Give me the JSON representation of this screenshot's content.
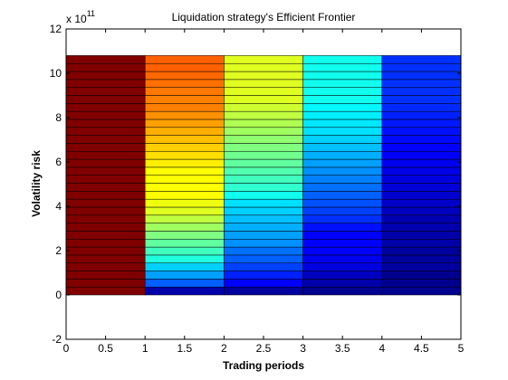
{
  "chart_data": {
    "type": "heatmap",
    "title": "Liquidation strategy's Efficient Frontier",
    "xlabel": "Trading periods",
    "ylabel": "Volatility risk",
    "y_exponent_label": "x 10",
    "y_exponent_power": "11",
    "xlim": [
      0,
      5
    ],
    "ylim": [
      -2,
      12
    ],
    "y_scale_multiplier": 100000000000,
    "x_ticks": [
      "0",
      "0.5",
      "1",
      "1.5",
      "2",
      "2.5",
      "3",
      "3.5",
      "4",
      "4.5",
      "5"
    ],
    "y_ticks": [
      "-2",
      "0",
      "2",
      "4",
      "6",
      "8",
      "10",
      "12"
    ],
    "x_tick_values": [
      0,
      0.5,
      1,
      1.5,
      2,
      2.5,
      3,
      3.5,
      4,
      4.5,
      5
    ],
    "y_tick_values": [
      -2,
      0,
      2,
      4,
      6,
      8,
      10,
      12
    ],
    "x_edges": [
      0,
      1,
      2,
      3,
      4,
      5
    ],
    "y_max": 10.8,
    "band_count": 30,
    "grid": false,
    "colormap": "jet",
    "series": [
      {
        "x_range": [
          0,
          1
        ],
        "colors": [
          "#800000",
          "#800000",
          "#800000",
          "#800000",
          "#800000",
          "#800000",
          "#800000",
          "#800000",
          "#800000",
          "#800000",
          "#800000",
          "#800000",
          "#800000",
          "#800000",
          "#800000",
          "#800000",
          "#800000",
          "#800000",
          "#800000",
          "#800000",
          "#800000",
          "#800000",
          "#800000",
          "#800000",
          "#800000",
          "#800000",
          "#800000",
          "#800000",
          "#800000",
          "#800000"
        ]
      },
      {
        "x_range": [
          1,
          2
        ],
        "colors": [
          "#0000aa",
          "#0060ff",
          "#00a0ff",
          "#00d0ff",
          "#20ffdf",
          "#40ffbf",
          "#60ff9f",
          "#80ff80",
          "#9fff60",
          "#bfff40",
          "#dfff20",
          "#f0ff10",
          "#ffff00",
          "#ffff00",
          "#ffff00",
          "#ffff00",
          "#ffef00",
          "#ffdf00",
          "#ffcf00",
          "#ffbf00",
          "#ffaf00",
          "#ffa000",
          "#ff9000",
          "#ff8000",
          "#ff8000",
          "#ff7800",
          "#ff7000",
          "#ff6800",
          "#ff6000",
          "#ff6000"
        ]
      },
      {
        "x_range": [
          2,
          3
        ],
        "colors": [
          "#00009f",
          "#0000ff",
          "#0020ff",
          "#0040ff",
          "#0060ff",
          "#0070ff",
          "#0090ff",
          "#00a0ff",
          "#00b0ff",
          "#00c0ff",
          "#00d0ff",
          "#00e0ff",
          "#10ffef",
          "#30ffcf",
          "#40ffbf",
          "#50ffaf",
          "#60ff9f",
          "#70ff8f",
          "#80ff80",
          "#90ff70",
          "#a0ff60",
          "#afff50",
          "#bfff40",
          "#cfff30",
          "#dfff20",
          "#dfff20",
          "#dfff20",
          "#dfff20",
          "#dfff20",
          "#dfff20"
        ]
      },
      {
        "x_range": [
          3,
          4
        ],
        "colors": [
          "#00008f",
          "#0000aa",
          "#0000c0",
          "#0000df",
          "#0000ef",
          "#0000ff",
          "#0000ff",
          "#0000ff",
          "#0010ff",
          "#0030ff",
          "#0040ff",
          "#0050ff",
          "#0060ff",
          "#0070ff",
          "#0080ff",
          "#0090ff",
          "#00a0ff",
          "#00b0ff",
          "#00c0ff",
          "#00d0ff",
          "#00e0ff",
          "#00e8ff",
          "#00f0ff",
          "#00f8ff",
          "#10ffef",
          "#10ffef",
          "#10ffef",
          "#10ffef",
          "#10ffef",
          "#10ffef"
        ]
      },
      {
        "x_range": [
          4,
          5
        ],
        "colors": [
          "#00008f",
          "#00008f",
          "#00008f",
          "#00009f",
          "#00009f",
          "#00009f",
          "#0000aa",
          "#0000aa",
          "#0000af",
          "#0000b0",
          "#0000bf",
          "#0000c8",
          "#0000cf",
          "#0000d8",
          "#0000df",
          "#0000e8",
          "#0000ef",
          "#0000f8",
          "#0000ff",
          "#0008ff",
          "#0010ff",
          "#0018ff",
          "#0020ff",
          "#0028ff",
          "#0030ff",
          "#0030ff",
          "#0030ff",
          "#0030ff",
          "#0030ff",
          "#0030ff"
        ]
      }
    ]
  }
}
